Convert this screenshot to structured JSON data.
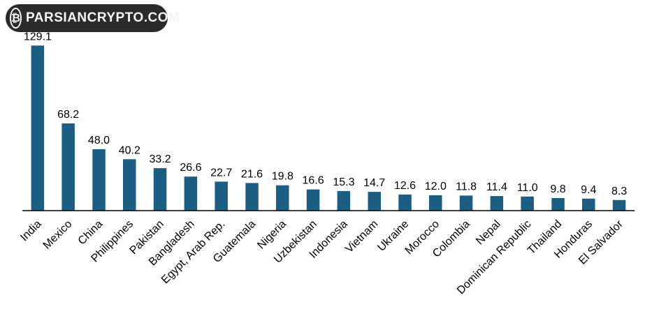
{
  "watermark": {
    "text": "PARSIANCRYPTO.COM",
    "icon": "parsiancrypto-emblem-icon"
  },
  "chart_data": {
    "type": "bar",
    "title": "",
    "xlabel": "",
    "ylabel": "",
    "ylim": [
      0,
      132
    ],
    "grid": false,
    "legend": "none",
    "bar_color": "#1b5e83",
    "label_format": "one-decimal",
    "categories": [
      "India",
      "Mexico",
      "China",
      "Philippines",
      "Pakistan",
      "Bangladesh",
      "Egypt, Arab Rep.",
      "Guatemala",
      "Nigeria",
      "Uzbekistan",
      "Indonesia",
      "Vietnam",
      "Ukraine",
      "Morocco",
      "Colombia",
      "Nepal",
      "Dominican Republic",
      "Thailand",
      "Honduras",
      "El Salvador"
    ],
    "values": [
      129.1,
      68.2,
      48.0,
      40.2,
      33.2,
      26.6,
      22.7,
      21.6,
      19.8,
      16.6,
      15.3,
      14.7,
      12.6,
      12.0,
      11.8,
      11.4,
      11.0,
      9.8,
      9.4,
      8.3
    ],
    "data_labels": [
      "129.1",
      "68.2",
      "48.0",
      "40.2",
      "33.2",
      "26.6",
      "22.7",
      "21.6",
      "19.8",
      "16.6",
      "15.3",
      "14.7",
      "12.6",
      "12.0",
      "11.8",
      "11.4",
      "11.0",
      "9.8",
      "9.4",
      "8.3"
    ]
  }
}
